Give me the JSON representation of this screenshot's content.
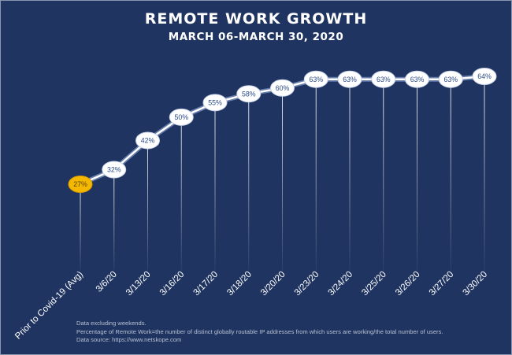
{
  "chart_data": {
    "type": "line",
    "title": "REMOTE WORK GROWTH",
    "subtitle": "MARCH 06-MARCH 30, 2020",
    "categories": [
      "Prior to Covid-19 (Avg)",
      "3/6/20",
      "3/13/20",
      "3/16/20",
      "3/17/20",
      "3/18/20",
      "3/20/20",
      "3/23/20",
      "3/24/20",
      "3/25/20",
      "3/26/20",
      "3/27/20",
      "3/30/20"
    ],
    "series": [
      {
        "values": [
          27,
          32,
          42,
          50,
          55,
          58,
          60,
          63,
          63,
          63,
          63,
          63,
          64
        ],
        "labels": [
          "27%",
          "32%",
          "42%",
          "50%",
          "55%",
          "58%",
          "60%",
          "63%",
          "63%",
          "63%",
          "63%",
          "63%",
          "64%"
        ]
      }
    ],
    "highlight_index": 0,
    "ylim": [
      0,
      70
    ],
    "grid": false,
    "colors": {
      "background": "#1f3460",
      "line": "#ffffff",
      "marker": "#ffffff",
      "marker_text": "#2a4a88",
      "highlight_marker": "#f5b800",
      "tick_label": "#ffffff"
    }
  },
  "notes": [
    "Data excluding weekends.",
    "Percentage of Remote Work=the number of distinct globally routable IP addresses from which users are working/the total number of users.",
    "Data source: https://www.netskope.com"
  ]
}
